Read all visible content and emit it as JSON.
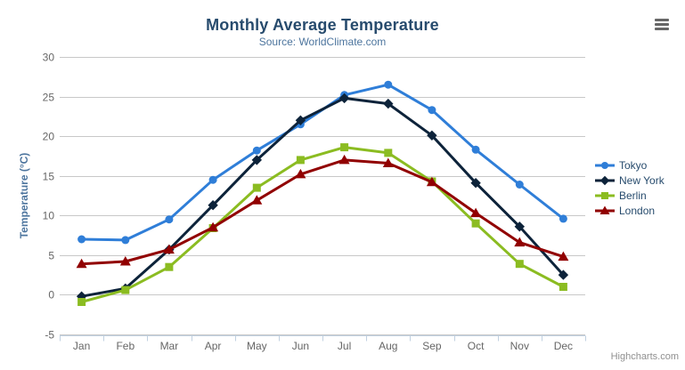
{
  "chart": {
    "title": "Monthly Average Temperature",
    "subtitle": "Source: WorldClimate.com",
    "credits": "Highcharts.com",
    "context_menu_icon": "hamburger-menu"
  },
  "colors": {
    "title": "#274b6d",
    "subtitle": "#4d759e",
    "axis_title": "#4d759e",
    "tick_labels": "#666666",
    "gridline": "#c8c8c8",
    "axis_line": "#c0d0e0",
    "credits": "#909090"
  },
  "chart_data": {
    "type": "line",
    "title": "Monthly Average Temperature",
    "subtitle": "Source: WorldClimate.com",
    "xlabel": "",
    "ylabel": "Temperature (°C)",
    "ylim": [
      -5,
      30
    ],
    "ytick_step": 5,
    "grid": true,
    "legend_position": "right",
    "categories": [
      "Jan",
      "Feb",
      "Mar",
      "Apr",
      "May",
      "Jun",
      "Jul",
      "Aug",
      "Sep",
      "Oct",
      "Nov",
      "Dec"
    ],
    "series": [
      {
        "name": "Tokyo",
        "color": "#2f7ed8",
        "marker": "circle",
        "values": [
          7.0,
          6.9,
          9.5,
          14.5,
          18.2,
          21.5,
          25.2,
          26.5,
          23.3,
          18.3,
          13.9,
          9.6
        ]
      },
      {
        "name": "New York",
        "color": "#0d233a",
        "marker": "diamond",
        "values": [
          -0.2,
          0.8,
          5.7,
          11.3,
          17.0,
          22.0,
          24.8,
          24.1,
          20.1,
          14.1,
          8.6,
          2.5
        ]
      },
      {
        "name": "Berlin",
        "color": "#8bbc21",
        "marker": "square",
        "values": [
          -0.9,
          0.6,
          3.5,
          8.4,
          13.5,
          17.0,
          18.6,
          17.9,
          14.3,
          9.0,
          3.9,
          1.0
        ]
      },
      {
        "name": "London",
        "color": "#910000",
        "marker": "triangle",
        "values": [
          3.9,
          4.2,
          5.7,
          8.5,
          11.9,
          15.2,
          17.0,
          16.6,
          14.2,
          10.3,
          6.6,
          4.8
        ]
      }
    ]
  }
}
